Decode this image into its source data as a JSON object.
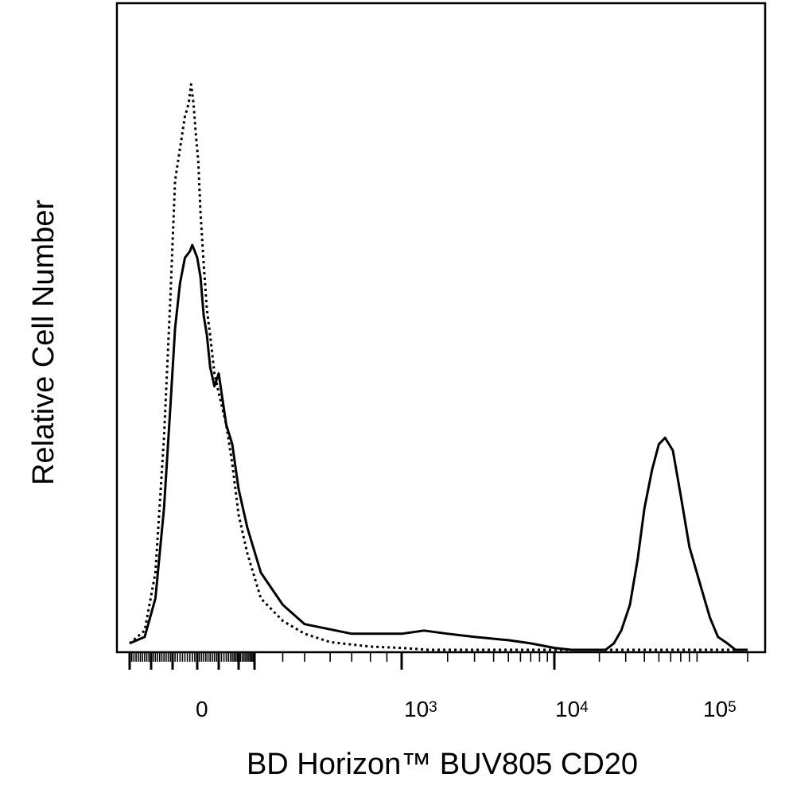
{
  "chart_data": {
    "type": "line",
    "title": "",
    "xlabel": "BD Horizon™ BUV805  CD20",
    "ylabel": "Relative Cell Number",
    "x_scale": "biexponential (log above 10^3)",
    "xlim": [
      -300,
      200000
    ],
    "ylim": [
      0,
      1.0
    ],
    "grid": false,
    "legend": "none",
    "x_ticks": [
      {
        "base": "0",
        "exp": ""
      },
      {
        "base": "10",
        "exp": "3"
      },
      {
        "base": "10",
        "exp": "4"
      },
      {
        "base": "10",
        "exp": "5"
      }
    ],
    "series": [
      {
        "style": "solid",
        "color": "#000000",
        "x": [
          -300,
          -230,
          -180,
          -140,
          -110,
          -90,
          -70,
          -50,
          -30,
          -20,
          -10,
          0,
          15,
          30,
          45,
          60,
          80,
          100,
          130,
          160,
          200,
          250,
          320,
          400,
          500,
          700,
          1000,
          1400,
          2000,
          3000,
          5000,
          7000,
          10000,
          13000,
          16000,
          19000,
          22000,
          25000,
          28000,
          32000,
          36000,
          40000,
          45000,
          50000,
          55000,
          62000,
          70000,
          80000,
          95000,
          110000,
          125000,
          145000,
          165000,
          200000
        ],
        "y": [
          0.01,
          0.02,
          0.08,
          0.22,
          0.38,
          0.5,
          0.57,
          0.61,
          0.62,
          0.63,
          0.62,
          0.61,
          0.58,
          0.52,
          0.49,
          0.44,
          0.41,
          0.43,
          0.35,
          0.32,
          0.25,
          0.19,
          0.12,
          0.07,
          0.04,
          0.025,
          0.025,
          0.03,
          0.025,
          0.02,
          0.015,
          0.01,
          0.003,
          0.0,
          0.0,
          0.0,
          0.0,
          0.01,
          0.03,
          0.07,
          0.14,
          0.22,
          0.28,
          0.32,
          0.33,
          0.31,
          0.24,
          0.16,
          0.1,
          0.05,
          0.02,
          0.01,
          0.0,
          0.0
        ]
      },
      {
        "style": "dotted",
        "color": "#000000",
        "x": [
          -300,
          -230,
          -180,
          -140,
          -110,
          -90,
          -70,
          -50,
          -35,
          -25,
          -15,
          -5,
          5,
          15,
          30,
          45,
          60,
          80,
          100,
          130,
          160,
          200,
          250,
          320,
          400,
          500,
          600,
          800,
          1000,
          1500,
          2000,
          3000,
          5000,
          10000,
          30000,
          100000,
          200000
        ],
        "y": [
          0.01,
          0.03,
          0.12,
          0.33,
          0.55,
          0.73,
          0.78,
          0.83,
          0.85,
          0.88,
          0.85,
          0.8,
          0.76,
          0.68,
          0.6,
          0.53,
          0.49,
          0.43,
          0.4,
          0.35,
          0.29,
          0.21,
          0.15,
          0.08,
          0.045,
          0.025,
          0.012,
          0.005,
          0.003,
          0.0,
          0.0,
          0.0,
          0.0,
          0.0,
          0.0,
          0.0,
          0.0
        ]
      }
    ]
  }
}
